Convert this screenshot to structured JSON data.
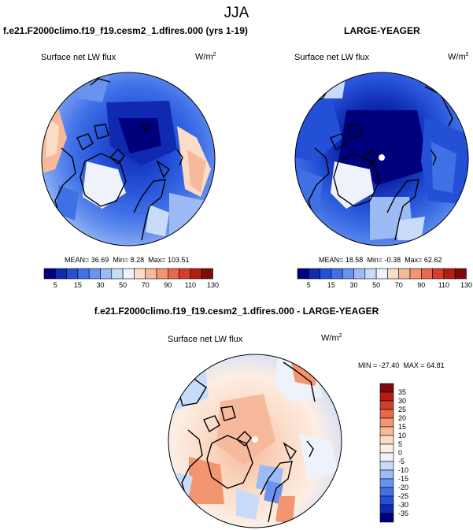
{
  "chart_data": {
    "type": "heatmap",
    "title": "JJA",
    "panels": [
      {
        "title": "f.e21.F2000climo.f19_f19.cesm2_1.dfires.000 (yrs 1-19)",
        "variable": "Surface net LW flux",
        "units": "W/m",
        "units_sup": "2",
        "stats": {
          "mean_label": "MEAN=",
          "mean": "36.69",
          "min_label": "Min=",
          "min": "8.28",
          "max_label": "Max=",
          "max": "103.51"
        },
        "colorbar": {
          "orientation": "horizontal",
          "levels": [
            "5",
            "15",
            "30",
            "50",
            "70",
            "90",
            "110",
            "130"
          ],
          "colors": [
            "#00007d",
            "#0f2ab0",
            "#2450d8",
            "#3f70e6",
            "#6a93ef",
            "#9cbbf5",
            "#c8dcf9",
            "#eef2fa",
            "#fbdcc7",
            "#f7b99c",
            "#f29570",
            "#e8694a",
            "#d63e2b",
            "#b51c13",
            "#7e0b0b"
          ]
        }
      },
      {
        "title": "LARGE-YEAGER",
        "variable": "Surface net LW flux",
        "units": "W/m",
        "units_sup": "2",
        "stats": {
          "mean_label": "MEAN=",
          "mean": "18.58",
          "min_label": "Min=",
          "min": "-0.38",
          "max_label": "Max=",
          "max": "62.62"
        },
        "colorbar": {
          "orientation": "horizontal",
          "levels": [
            "5",
            "15",
            "30",
            "50",
            "70",
            "90",
            "110",
            "130"
          ],
          "colors": [
            "#00007d",
            "#0f2ab0",
            "#2450d8",
            "#3f70e6",
            "#6a93ef",
            "#9cbbf5",
            "#c8dcf9",
            "#eef2fa",
            "#fbdcc7",
            "#f7b99c",
            "#f29570",
            "#e8694a",
            "#d63e2b",
            "#b51c13",
            "#7e0b0b"
          ]
        }
      },
      {
        "title": "f.e21.F2000climo.f19_f19.cesm2_1.dfires.000 - LARGE-YEAGER",
        "variable": "Surface net LW flux",
        "units": "W/m",
        "units_sup": "2",
        "stats": {
          "min_label": "MIN =",
          "min": "-27.40",
          "max_label": "MAX =",
          "max": "64.81"
        },
        "colorbar": {
          "orientation": "vertical",
          "levels": [
            "35",
            "30",
            "25",
            "20",
            "15",
            "10",
            "5",
            "0",
            "-5",
            "-10",
            "-15",
            "-20",
            "-25",
            "-30",
            "-35"
          ],
          "colors": [
            "#7e0b0b",
            "#b51c13",
            "#d63e2b",
            "#e8694a",
            "#f29570",
            "#f7b99c",
            "#fbdcc7",
            "#fdeee5",
            "#eef2fa",
            "#c8dcf9",
            "#9cbbf5",
            "#6a93ef",
            "#3f70e6",
            "#2450d8",
            "#0f2ab0",
            "#00007d"
          ]
        }
      }
    ]
  }
}
